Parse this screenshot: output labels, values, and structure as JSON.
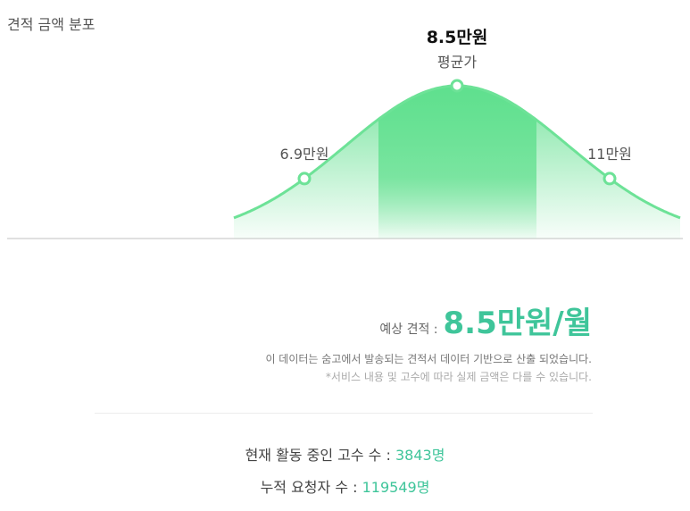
{
  "header": {
    "title": "견적 금액 분포"
  },
  "chart_data": {
    "type": "area",
    "points": [
      {
        "label": "6.9만원",
        "caption": ""
      },
      {
        "label": "8.5만원",
        "caption": "평균가"
      },
      {
        "label": "11만원",
        "caption": ""
      }
    ],
    "colors": {
      "curve": "#6de297",
      "band": "#5fe08e",
      "axis": "#d6d6d6"
    }
  },
  "estimate": {
    "label": "예상 견적 :",
    "value": "8.5만원/월"
  },
  "notes": {
    "line1": "이 데이터는 숨고에서 발송되는 견적서 데이터 기반으로 산출 되었습니다.",
    "line2": "*서비스 내용 및 고수에 따라 실제 금액은 다를 수 있습니다."
  },
  "stats": {
    "active_label": "현재 활동 중인 고수 수 :",
    "active_value": "3843명",
    "requests_label": "누적 요청자 수 :",
    "requests_value": "119549명"
  },
  "colors": {
    "accent": "#3fc59a"
  }
}
